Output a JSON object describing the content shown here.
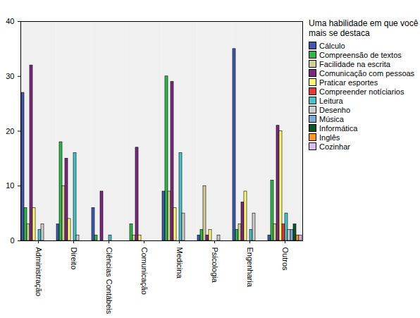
{
  "chart_data": {
    "type": "bar",
    "legend_title": "Uma habilidade em que você mais se destaca",
    "legend": "right",
    "categories": [
      "Administração",
      "Direito",
      "Ciências Contábeis",
      "Comunicação",
      "Medicina",
      "Psicologia",
      "Engenharia",
      "Outros"
    ],
    "series": [
      {
        "name": "Cálculo",
        "color": "#3e58ac",
        "values": [
          27,
          3,
          6,
          0,
          9,
          1,
          35,
          1
        ]
      },
      {
        "name": "Compreensão de textos",
        "color": "#2eb848",
        "values": [
          6,
          18,
          1,
          3,
          30,
          2,
          2,
          11
        ]
      },
      {
        "name": "Facilidade na escrita",
        "color": "#d3ce97",
        "values": [
          3,
          10,
          0,
          1,
          9,
          10,
          3,
          3
        ]
      },
      {
        "name": "Comunicação com pessoas",
        "color": "#7c287d",
        "values": [
          32,
          15,
          9,
          17,
          29,
          1,
          7,
          21
        ]
      },
      {
        "name": "Praticar esportes",
        "color": "#fbf873",
        "values": [
          6,
          4,
          0,
          1,
          6,
          2,
          9,
          20
        ]
      },
      {
        "name": "Compreender notíciarios",
        "color": "#ef3338",
        "values": [
          0,
          0,
          0,
          0,
          0,
          0,
          0,
          3
        ]
      },
      {
        "name": "Leitura",
        "color": "#48c2c5",
        "values": [
          2,
          16,
          1,
          0,
          16,
          0,
          2,
          5
        ]
      },
      {
        "name": "Desenho",
        "color": "#cccccc",
        "values": [
          3,
          1,
          0,
          0,
          5,
          1,
          5,
          2
        ]
      },
      {
        "name": "Música",
        "color": "#7aaad5",
        "values": [
          0,
          0,
          0,
          0,
          0,
          0,
          0,
          2
        ]
      },
      {
        "name": "Informática",
        "color": "#0a562c",
        "values": [
          0,
          0,
          0,
          0,
          0,
          0,
          0,
          3
        ]
      },
      {
        "name": "Inglês",
        "color": "#f8981d",
        "values": [
          0,
          0,
          0,
          0,
          0,
          0,
          0,
          1
        ]
      },
      {
        "name": "Cozinhar",
        "color": "#ddbaf1",
        "values": [
          0,
          0,
          0,
          0,
          0,
          0,
          0,
          1
        ]
      }
    ],
    "ylim": [
      0,
      40
    ],
    "yticks": [
      0,
      10,
      20,
      30,
      40
    ],
    "grid": false
  }
}
